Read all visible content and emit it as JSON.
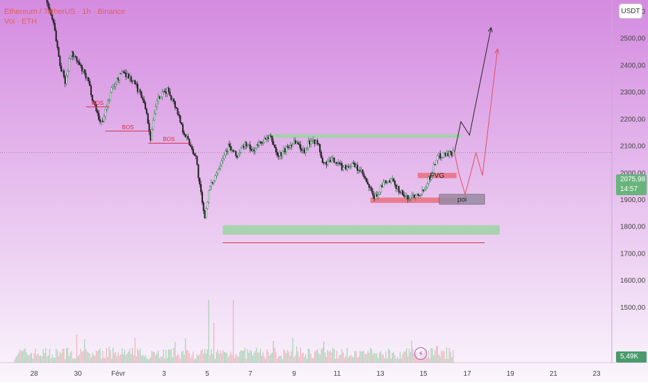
{
  "legend": {
    "line1": "Ethereum / TetherUS · 1h · Binance",
    "line2": "Vol · ETH"
  },
  "currency_label": "USDT",
  "current_price": "2075,98",
  "countdown": "14:57",
  "volume_value": "5,49K",
  "colors": {
    "bg_top": "#d48be0",
    "bg_bottom": "#faf5fc",
    "up": "#2f7a4f",
    "down": "#222222",
    "zone_green": "#9ed4a2",
    "zone_red": "#e8707e",
    "zone_poi": "#9a8aa3",
    "bos": "#d03040"
  },
  "chart_data": {
    "type": "candlestick",
    "x_ticks": [
      "28",
      "30",
      "Févr",
      "3",
      "5",
      "7",
      "9",
      "11",
      "13",
      "15",
      "17",
      "19",
      "21",
      "23"
    ],
    "y_ticks": [
      "1500,00",
      "1600,00",
      "1700,00",
      "1800,00",
      "1900,00",
      "2000,00",
      "2100,00",
      "2200,00",
      "2300,00",
      "2400,00",
      "2500,00",
      "2600,00"
    ],
    "y_tick_values": [
      1500,
      1600,
      1700,
      1800,
      1900,
      2000,
      2100,
      2200,
      2300,
      2400,
      2500,
      2600
    ],
    "path_points": [
      {
        "day": -4.8,
        "price": 2740
      },
      {
        "day": -3.8,
        "price": 2715
      },
      {
        "day": -3.5,
        "price": 2680
      },
      {
        "day": -3.0,
        "price": 2560
      },
      {
        "day": -2.7,
        "price": 2400
      },
      {
        "day": -2.45,
        "price": 2340
      },
      {
        "day": -2.2,
        "price": 2450
      },
      {
        "day": -1.8,
        "price": 2400
      },
      {
        "day": -1.4,
        "price": 2340
      },
      {
        "day": -1.2,
        "price": 2280
      },
      {
        "day": -0.8,
        "price": 2180
      },
      {
        "day": -0.3,
        "price": 2310
      },
      {
        "day": 0.2,
        "price": 2380
      },
      {
        "day": 0.7,
        "price": 2340
      },
      {
        "day": 1.2,
        "price": 2270
      },
      {
        "day": 1.5,
        "price": 2130
      },
      {
        "day": 1.8,
        "price": 2270
      },
      {
        "day": 2.3,
        "price": 2310
      },
      {
        "day": 2.7,
        "price": 2240
      },
      {
        "day": 3.0,
        "price": 2160
      },
      {
        "day": 3.3,
        "price": 2110
      },
      {
        "day": 3.6,
        "price": 2060
      },
      {
        "day": 3.8,
        "price": 1940
      },
      {
        "day": 4.0,
        "price": 1830
      },
      {
        "day": 4.2,
        "price": 1930
      },
      {
        "day": 4.5,
        "price": 1990
      },
      {
        "day": 4.8,
        "price": 2050
      },
      {
        "day": 5.1,
        "price": 2100
      },
      {
        "day": 5.5,
        "price": 2060
      },
      {
        "day": 5.9,
        "price": 2110
      },
      {
        "day": 6.2,
        "price": 2080
      },
      {
        "day": 6.7,
        "price": 2120
      },
      {
        "day": 7.1,
        "price": 2130
      },
      {
        "day": 7.4,
        "price": 2060
      },
      {
        "day": 7.8,
        "price": 2090
      },
      {
        "day": 8.2,
        "price": 2120
      },
      {
        "day": 8.6,
        "price": 2080
      },
      {
        "day": 9.0,
        "price": 2130
      },
      {
        "day": 9.3,
        "price": 2100
      },
      {
        "day": 9.5,
        "price": 2030
      },
      {
        "day": 10.0,
        "price": 2050
      },
      {
        "day": 10.4,
        "price": 2020
      },
      {
        "day": 10.9,
        "price": 2030
      },
      {
        "day": 11.3,
        "price": 2000
      },
      {
        "day": 11.6,
        "price": 1950
      },
      {
        "day": 11.9,
        "price": 1905
      },
      {
        "day": 12.3,
        "price": 1960
      },
      {
        "day": 12.7,
        "price": 1970
      },
      {
        "day": 13.1,
        "price": 1930
      },
      {
        "day": 13.4,
        "price": 1905
      },
      {
        "day": 13.8,
        "price": 1920
      },
      {
        "day": 14.1,
        "price": 1930
      },
      {
        "day": 14.3,
        "price": 1960
      },
      {
        "day": 14.5,
        "price": 1990
      },
      {
        "day": 14.8,
        "price": 2060
      },
      {
        "day": 15.2,
        "price": 2070
      },
      {
        "day": 15.6,
        "price": 2076
      }
    ],
    "zones": [
      {
        "kind": "green",
        "d1": 7.0,
        "d2": 15.9,
        "p1": 2130,
        "p2": 2144
      },
      {
        "kind": "green",
        "d1": 4.85,
        "d2": 17.7,
        "p1": 1770,
        "p2": 1805
      },
      {
        "kind": "red",
        "d1": 13.9,
        "d2": 15.7,
        "p1": 2000,
        "p2": 1980
      },
      {
        "kind": "red",
        "d1": 11.7,
        "d2": 15.7,
        "p1": 1908,
        "p2": 1888
      },
      {
        "kind": "poi",
        "d1": 14.9,
        "d2": 17.0,
        "p1": 1920,
        "p2": 1883
      }
    ],
    "zone_labels": [
      "FVG",
      "poi"
    ],
    "bos_labels": [
      "BOS",
      "BOS",
      "BOS"
    ],
    "bos_lines": [
      {
        "d1": -1.5,
        "d2": -0.4,
        "price": 2245
      },
      {
        "d1": -0.6,
        "d2": 1.5,
        "price": 2155
      },
      {
        "d1": 1.4,
        "d2": 3.3,
        "price": 2110
      }
    ],
    "support_line": {
      "d1": 4.85,
      "d2": 17.0,
      "price": 1740
    },
    "projection_black": [
      {
        "day": 15.6,
        "price": 2076
      },
      {
        "day": 15.9,
        "price": 2190
      },
      {
        "day": 16.3,
        "price": 2140
      },
      {
        "day": 17.3,
        "price": 2540
      }
    ],
    "projection_red": [
      {
        "day": 15.6,
        "price": 2076
      },
      {
        "day": 15.8,
        "price": 2000
      },
      {
        "day": 16.1,
        "price": 1920
      },
      {
        "day": 16.6,
        "price": 2075
      },
      {
        "day": 16.9,
        "price": 1990
      },
      {
        "day": 17.6,
        "price": 2460
      }
    ],
    "volume_spikes": [
      {
        "day": 4.2,
        "value": 0.95
      },
      {
        "day": 5.35,
        "value": 0.95
      },
      {
        "day": 4.45,
        "value": 0.6
      },
      {
        "day": 14.8,
        "value": 0.25
      }
    ]
  }
}
